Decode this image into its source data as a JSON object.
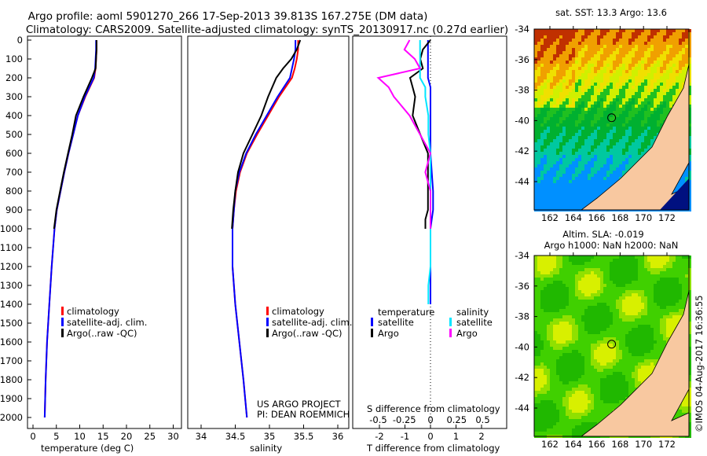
{
  "header": {
    "line1": "Argo profile: aoml 5901270_266 17-Sep-2013 39.813S 167.275E (DM data)",
    "line2": "Climatology: CARS2009. Satellite-adjusted climatology: synTS_20130917.nc (0.27d earlier)"
  },
  "colors": {
    "clim": "#ff0000",
    "sat": "#0000ff",
    "argo": "#000000",
    "sal_sat": "#00e5ff",
    "sal_argo": "#ff00ff"
  },
  "chart_data": [
    {
      "type": "line",
      "xlabel": "temperature (deg C)",
      "ylabel": "",
      "xlim": [
        -2,
        31
      ],
      "ylim": [
        2000,
        0
      ],
      "xticks": [
        "0",
        "5",
        "10",
        "15",
        "20",
        "25",
        "30"
      ],
      "xtickvals": [
        0,
        5,
        10,
        15,
        20,
        25,
        30
      ],
      "yticks": [
        "0",
        "100",
        "200",
        "300",
        "400",
        "500",
        "600",
        "700",
        "800",
        "900",
        "1000",
        "1100",
        "1200",
        "1300",
        "1400",
        "1500",
        "1600",
        "1700",
        "1800",
        "1900",
        "2000"
      ],
      "legend": [
        "climatology",
        "satellite-adj. clim.",
        "Argo(..raw -QC)"
      ],
      "depth": [
        0,
        50,
        100,
        150,
        200,
        300,
        400,
        500,
        600,
        700,
        800,
        900,
        1000,
        1200,
        1400,
        1600,
        1800,
        2000
      ],
      "series": [
        {
          "name": "climatology",
          "values": [
            13.6,
            13.6,
            13.5,
            13.4,
            13.1,
            11.2,
            9.6,
            8.6,
            7.6,
            6.7,
            5.9,
            5.1,
            4.6,
            4.0,
            3.5,
            3.0,
            2.7,
            2.5
          ]
        },
        {
          "name": "satellite-adj. clim.",
          "values": [
            13.5,
            13.5,
            13.4,
            13.3,
            13.0,
            11.1,
            9.6,
            8.6,
            7.6,
            6.7,
            5.9,
            5.1,
            4.6,
            4.0,
            3.5,
            3.0,
            2.7,
            2.5
          ]
        },
        {
          "name": "Argo",
          "values": [
            13.6,
            13.6,
            13.5,
            13.4,
            12.6,
            10.8,
            9.2,
            8.4,
            7.5,
            6.6,
            5.8,
            5.0,
            4.5,
            null,
            null,
            null,
            null,
            null
          ]
        }
      ]
    },
    {
      "type": "line",
      "xlabel": "salinity",
      "xlim": [
        33.9,
        36.1
      ],
      "ylim": [
        2000,
        0
      ],
      "xticks": [
        "34",
        "34.5",
        "35",
        "35.5",
        "36"
      ],
      "xtickvals": [
        34,
        34.5,
        35,
        35.5,
        36
      ],
      "legend": [
        "climatology",
        "satellite-adj. clim.",
        "Argo(..raw -QC)"
      ],
      "annotation": [
        "US ARGO PROJECT",
        "PI: DEAN ROEMMICH"
      ],
      "depth": [
        0,
        50,
        100,
        150,
        200,
        300,
        400,
        500,
        600,
        700,
        800,
        900,
        1000,
        1200,
        1400,
        1600,
        1800,
        2000
      ],
      "series": [
        {
          "name": "climatology",
          "values": [
            35.42,
            35.42,
            35.4,
            35.37,
            35.33,
            35.14,
            34.98,
            34.82,
            34.67,
            34.57,
            34.51,
            34.48,
            34.46,
            34.46,
            34.5,
            34.56,
            34.62,
            34.67
          ]
        },
        {
          "name": "satellite-adj. clim.",
          "values": [
            35.38,
            35.38,
            35.36,
            35.33,
            35.3,
            35.12,
            34.96,
            34.8,
            34.66,
            34.56,
            34.5,
            34.48,
            34.46,
            34.46,
            34.5,
            34.56,
            34.62,
            34.67
          ]
        },
        {
          "name": "Argo",
          "values": [
            35.45,
            35.4,
            35.32,
            35.2,
            35.1,
            34.98,
            34.88,
            34.75,
            34.62,
            34.54,
            34.5,
            34.47,
            34.45,
            null,
            null,
            null,
            null,
            null
          ]
        }
      ]
    },
    {
      "type": "line",
      "xlabel": "T difference from climatology",
      "xlabel_top": "S difference from climatology",
      "xlim": [
        -2.8,
        2.8
      ],
      "ylim": [
        2000,
        0
      ],
      "xticks": [
        "-2",
        "-1",
        "0",
        "1",
        "2"
      ],
      "xtickvals": [
        -2,
        -1,
        0,
        1,
        2
      ],
      "xticks_top": [
        "-0.5",
        "-0.25",
        "0",
        "0.25",
        "0.5"
      ],
      "xtickvals_top": [
        -0.5,
        -0.25,
        0,
        0.25,
        0.5
      ],
      "legend": {
        "temperature": "temperature",
        "salinity": "salinity",
        "items": [
          "satellite",
          "Argo",
          "satellite",
          "Argo"
        ]
      },
      "depth": [
        0,
        50,
        100,
        150,
        200,
        250,
        300,
        400,
        500,
        600,
        700,
        800,
        900,
        950,
        1000,
        1100,
        1200,
        1300,
        1400
      ],
      "series": [
        {
          "name": "T satellite",
          "values": [
            -0.1,
            -0.1,
            -0.1,
            -0.1,
            -0.1,
            0,
            0,
            0,
            0,
            0,
            0.05,
            0.1,
            0.1,
            0.05,
            0,
            0,
            0,
            0,
            0
          ]
        },
        {
          "name": "T Argo",
          "values": [
            0,
            -0.3,
            -0.4,
            -0.3,
            -0.8,
            -0.7,
            -0.6,
            -0.7,
            -0.4,
            -0.1,
            -0.1,
            -0.1,
            -0.1,
            -0.2,
            -0.2,
            null,
            null,
            null,
            null
          ]
        },
        {
          "name": "S satellite",
          "values": [
            -0.1,
            -0.1,
            -0.1,
            -0.1,
            -0.1,
            -0.05,
            -0.05,
            -0.02,
            -0.02,
            0,
            0,
            0,
            0,
            0,
            0,
            0,
            0,
            -0.02,
            -0.02
          ]
        },
        {
          "name": "S Argo",
          "values": [
            -0.2,
            -0.25,
            -0.15,
            -0.1,
            -0.5,
            -0.4,
            -0.35,
            -0.2,
            -0.1,
            0,
            -0.05,
            0,
            0,
            0,
            0,
            null,
            null,
            null,
            null
          ]
        }
      ]
    }
  ],
  "maps": {
    "sst_title": "sat. SST: 13.3 Argo: 13.6",
    "sla_title1": "Altim. SLA: -0.019",
    "sla_title2": "Argo h1000: NaN h2000: NaN",
    "lat_ticks": [
      "-34",
      "-36",
      "-38",
      "-40",
      "-42",
      "-44"
    ],
    "lon_ticks": [
      "162",
      "164",
      "166",
      "168",
      "170",
      "172"
    ],
    "argo_lon": 167.275,
    "argo_lat": -39.813
  },
  "footer": {
    "stamp": "©IMOS 04-Aug-2017 16:36:55"
  }
}
